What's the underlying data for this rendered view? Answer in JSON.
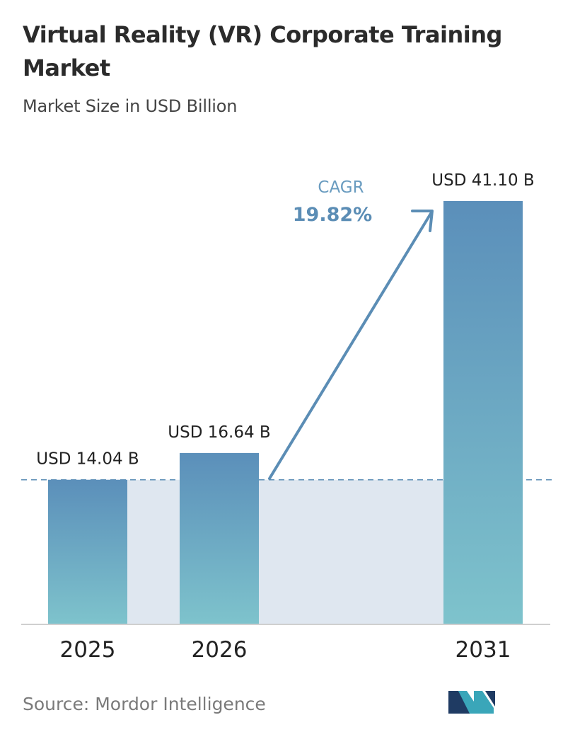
{
  "header": {
    "title": "Virtual Reality (VR) Corporate Training Market",
    "subtitle": "Market Size in USD Billion"
  },
  "chart_data": {
    "type": "bar",
    "title": "Virtual Reality (VR) Corporate Training Market",
    "subtitle": "Market Size in USD Billion",
    "categories": [
      "2025",
      "2026",
      "2031"
    ],
    "values": [
      14.04,
      16.64,
      41.1
    ],
    "value_labels": [
      "USD 14.04 B",
      "USD 16.64 B",
      "USD 41.10 B"
    ],
    "unit": "USD Billion",
    "ylim": [
      0,
      41.1
    ],
    "grid": false,
    "annotations": {
      "cagr_label": "CAGR",
      "cagr_value": "19.82%"
    },
    "colors": {
      "bar_top": "#5b8fba",
      "bar_bottom": "#7ec3cc",
      "band": "#dfe7f0",
      "accent": "#5b8db5",
      "baseline": "#cfcfcf"
    }
  },
  "footer": {
    "source": "Source: Mordor Intelligence",
    "logo_icon": "mordor-intelligence-logo-icon"
  }
}
